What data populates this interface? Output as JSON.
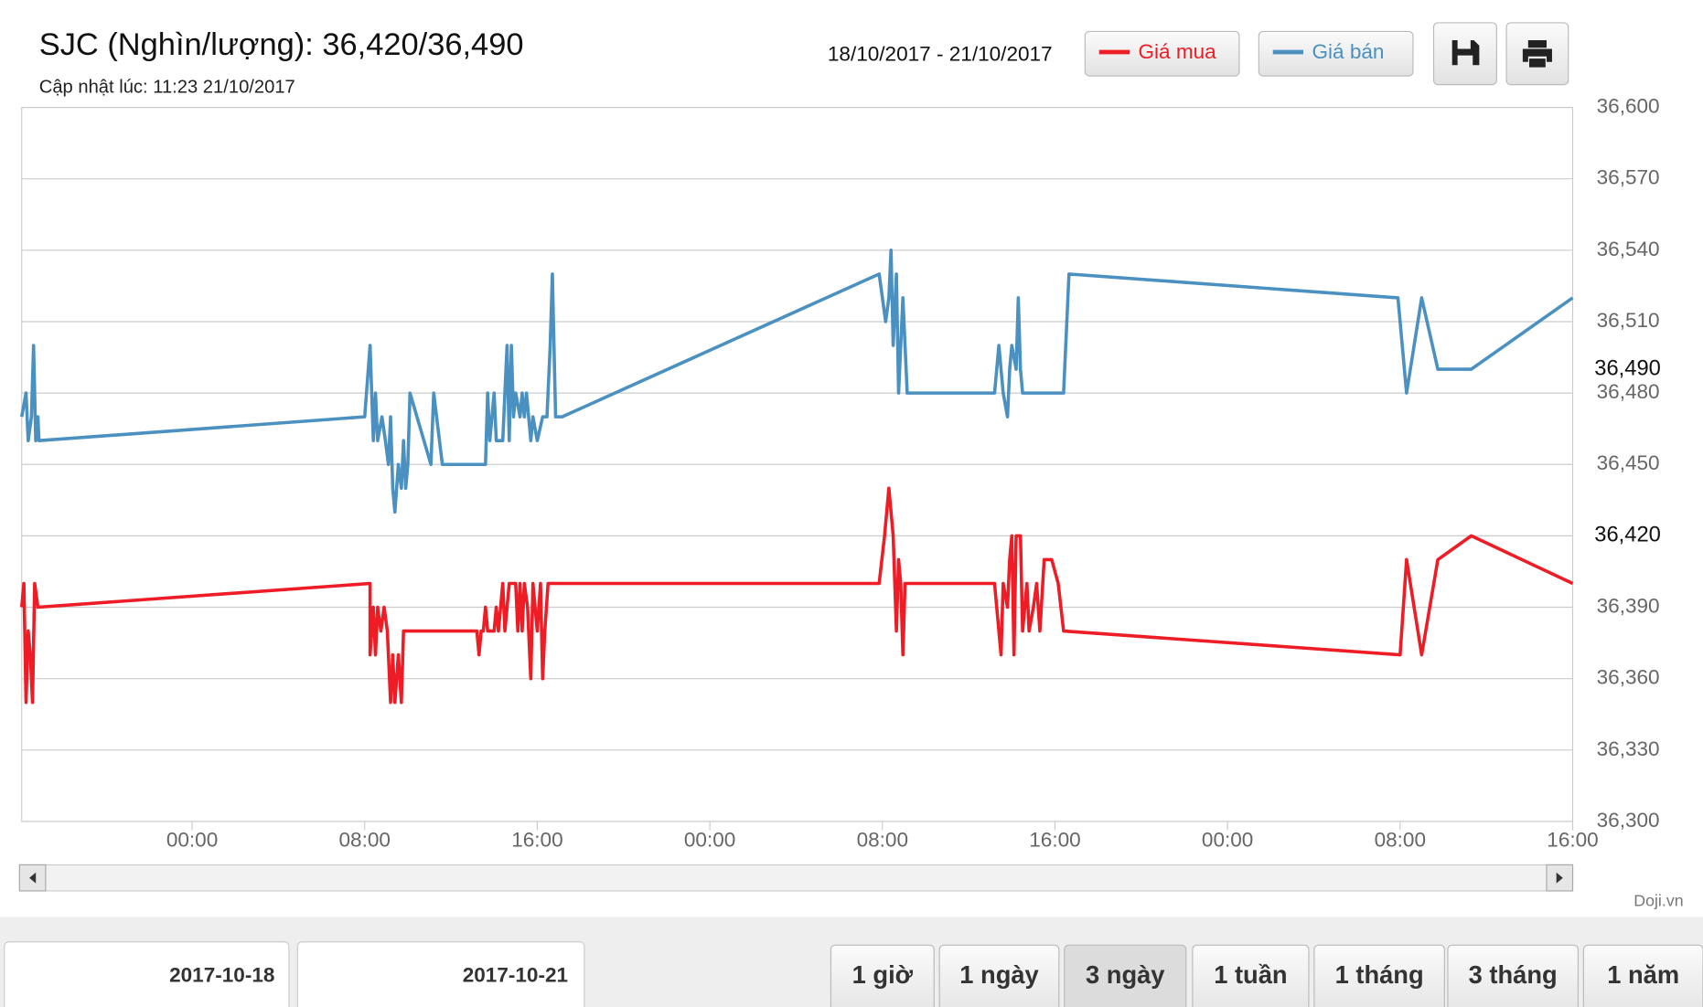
{
  "header": {
    "title": "SJC (Nghìn/lượng): 36,420/36,490",
    "updated": "Cập nhật lúc: 11:23 21/10/2017",
    "date_range": "18/10/2017 - 21/10/2017"
  },
  "chart_data": {
    "type": "line",
    "series": [
      {
        "name": "Giá mua",
        "color": "#ee1c25",
        "x": [
          16.1,
          16.2,
          16.3,
          16.4,
          16.5,
          16.6,
          16.7,
          16.85,
          32.25,
          32.25,
          32.4,
          32.5,
          32.6,
          32.75,
          32.9,
          33.05,
          33.2,
          33.3,
          33.4,
          33.56,
          33.7,
          33.8,
          34.0,
          37.2,
          37.3,
          37.4,
          37.5,
          37.6,
          37.7,
          38.0,
          38.1,
          38.2,
          38.4,
          38.5,
          38.7,
          39.0,
          39.1,
          39.2,
          39.3,
          39.4,
          39.55,
          39.7,
          39.8,
          40.0,
          40.15,
          40.25,
          40.35,
          40.5,
          55.85,
          56.1,
          56.3,
          56.5,
          56.65,
          56.75,
          56.85,
          56.95,
          57.05,
          61.2,
          61.4,
          61.5,
          61.6,
          61.8,
          61.9,
          62.0,
          62.1,
          62.2,
          62.4,
          62.5,
          62.7,
          62.8,
          63.0,
          63.15,
          63.3,
          63.5,
          63.85,
          64.15,
          64.4,
          80.0,
          80.3,
          81.0,
          81.75,
          83.3,
          88
        ],
        "values": [
          36390,
          36400,
          36350,
          36380,
          36370,
          36350,
          36400,
          36390,
          36400,
          36370,
          36390,
          36370,
          36390,
          36380,
          36390,
          36380,
          36350,
          36370,
          36350,
          36370,
          36350,
          36380,
          36380,
          36380,
          36370,
          36380,
          36380,
          36390,
          36380,
          36380,
          36390,
          36380,
          36400,
          36380,
          36400,
          36400,
          36380,
          36400,
          36380,
          36400,
          36390,
          36360,
          36400,
          36380,
          36400,
          36360,
          36380,
          36400,
          36400,
          36420,
          36440,
          36420,
          36380,
          36410,
          36400,
          36370,
          36400,
          36400,
          36380,
          36370,
          36400,
          36390,
          36410,
          36420,
          36370,
          36420,
          36420,
          36380,
          36400,
          36380,
          36390,
          36400,
          36380,
          36410,
          36410,
          36400,
          36380,
          36370,
          36410,
          36370,
          36410,
          36420,
          36400
        ]
      },
      {
        "name": "Giá bán",
        "color": "#4a90c0",
        "x": [
          16.1,
          16.3,
          16.4,
          16.55,
          16.65,
          16.75,
          16.85,
          16.9,
          32.0,
          32.25,
          32.4,
          32.5,
          32.6,
          32.8,
          32.96,
          33.1,
          33.2,
          33.3,
          33.4,
          33.56,
          33.7,
          33.8,
          33.9,
          34.0,
          34.1,
          35.07,
          35.2,
          35.6,
          37.6,
          37.7,
          37.8,
          38.0,
          38.1,
          38.4,
          38.5,
          38.6,
          38.7,
          38.8,
          38.9,
          39.0,
          39.2,
          39.3,
          39.4,
          39.5,
          39.7,
          39.8,
          40.0,
          40.25,
          40.45,
          40.6,
          40.7,
          40.85,
          41.15,
          55.85,
          56.15,
          56.3,
          56.4,
          56.5,
          56.65,
          56.75,
          56.95,
          57.05,
          57.15,
          61.2,
          61.4,
          61.6,
          61.8,
          61.9,
          62.0,
          62.2,
          62.3,
          62.4,
          62.5,
          64.4,
          64.65,
          79.9,
          80.3,
          81.0,
          81.75,
          83.3,
          88
        ],
        "values": [
          36470,
          36480,
          36460,
          36470,
          36500,
          36460,
          36470,
          36460,
          36470,
          36500,
          36460,
          36480,
          36460,
          36470,
          36460,
          36450,
          36470,
          36440,
          36430,
          36450,
          36440,
          36460,
          36440,
          36450,
          36480,
          36450,
          36480,
          36450,
          36450,
          36480,
          36460,
          36480,
          36460,
          36460,
          36480,
          36500,
          36460,
          36500,
          36470,
          36480,
          36470,
          36480,
          36470,
          36480,
          36460,
          36470,
          36460,
          36470,
          36470,
          36500,
          36530,
          36470,
          36470,
          36530,
          36510,
          36520,
          36540,
          36500,
          36530,
          36480,
          36520,
          36500,
          36480,
          36480,
          36500,
          36480,
          36470,
          36490,
          36500,
          36490,
          36520,
          36490,
          36480,
          36480,
          36530,
          36520,
          36480,
          36520,
          36490,
          36490,
          36520
        ]
      }
    ],
    "xlim": [
      16.1,
      88
    ],
    "xticks": [
      {
        "value": 24,
        "label": "00:00"
      },
      {
        "value": 32,
        "label": "08:00"
      },
      {
        "value": 40,
        "label": "16:00"
      },
      {
        "value": 48,
        "label": "00:00"
      },
      {
        "value": 56,
        "label": "08:00"
      },
      {
        "value": 64,
        "label": "16:00"
      },
      {
        "value": 72,
        "label": "00:00"
      },
      {
        "value": 80,
        "label": "08:00"
      },
      {
        "value": 88,
        "label": "16:00"
      }
    ],
    "ylim": [
      36300,
      36600
    ],
    "yticks": [
      {
        "value": 36300,
        "label": "36,300"
      },
      {
        "value": 36330,
        "label": "36,330"
      },
      {
        "value": 36360,
        "label": "36,360"
      },
      {
        "value": 36390,
        "label": "36,390"
      },
      {
        "value": 36420,
        "label": "36,420"
      },
      {
        "value": 36450,
        "label": "36,450"
      },
      {
        "value": 36480,
        "label": "36,480"
      },
      {
        "value": 36510,
        "label": "36,510"
      },
      {
        "value": 36540,
        "label": "36,540"
      },
      {
        "value": 36570,
        "label": "36,570"
      },
      {
        "value": 36600,
        "label": "36,600"
      }
    ],
    "current_labels": [
      {
        "value": 36490,
        "label": "36,490"
      },
      {
        "value": 36420,
        "label": "36,420"
      }
    ],
    "grid": true,
    "credit": "Doji.vn"
  },
  "controls": {
    "from_date": "2017-10-18",
    "to_date": "2017-10-21",
    "ranges": [
      "1 giờ",
      "1 ngày",
      "3 ngày",
      "1 tuần",
      "1 tháng",
      "3 tháng",
      "1 năm"
    ],
    "active_range": 2
  }
}
